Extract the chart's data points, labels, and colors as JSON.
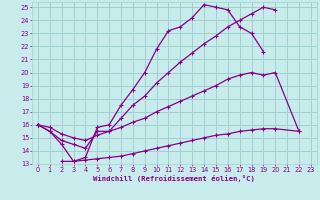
{
  "bg_color": "#c8ecec",
  "grid_color": "#a0d0d0",
  "line_color": "#880088",
  "xlabel": "Windchill (Refroidissement éolien,°C)",
  "xlim": [
    -0.5,
    23.5
  ],
  "ylim": [
    13,
    25.4
  ],
  "yticks": [
    13,
    14,
    15,
    16,
    17,
    18,
    19,
    20,
    21,
    22,
    23,
    24,
    25
  ],
  "xticks": [
    0,
    1,
    2,
    3,
    4,
    5,
    6,
    7,
    8,
    9,
    10,
    11,
    12,
    13,
    14,
    15,
    16,
    17,
    18,
    19,
    20,
    21,
    22,
    23
  ],
  "line1_x": [
    0,
    1,
    2,
    3,
    4,
    5,
    6,
    7,
    8,
    9,
    10,
    11,
    12,
    13,
    14,
    15,
    16,
    17,
    18,
    19
  ],
  "line1_y": [
    16.0,
    15.5,
    14.5,
    13.2,
    13.5,
    15.8,
    16.0,
    17.5,
    18.7,
    20.0,
    21.8,
    23.2,
    23.5,
    24.2,
    25.2,
    25.0,
    24.8,
    23.5,
    23.0,
    21.6
  ],
  "line2_x": [
    0,
    1,
    2,
    3,
    4,
    5,
    6,
    7,
    8,
    9,
    10,
    11,
    12,
    13,
    14,
    15,
    16,
    17,
    18,
    19,
    20
  ],
  "line2_y": [
    16.0,
    15.5,
    14.8,
    14.5,
    14.2,
    15.5,
    15.5,
    16.5,
    17.5,
    18.2,
    19.2,
    20.0,
    20.8,
    21.5,
    22.2,
    22.8,
    23.5,
    24.0,
    24.5,
    25.0,
    24.8
  ],
  "line3_x": [
    0,
    1,
    2,
    3,
    4,
    5,
    6,
    7,
    8,
    9,
    10,
    11,
    12,
    13,
    14,
    15,
    16,
    17,
    18,
    19,
    20,
    22
  ],
  "line3_y": [
    16.0,
    15.8,
    15.3,
    15.0,
    14.8,
    15.2,
    15.5,
    15.8,
    16.2,
    16.5,
    17.0,
    17.4,
    17.8,
    18.2,
    18.6,
    19.0,
    19.5,
    19.8,
    20.0,
    19.8,
    20.0,
    15.5
  ],
  "line4_x": [
    2,
    3,
    4,
    5,
    6,
    7,
    8,
    9,
    10,
    11,
    12,
    13,
    14,
    15,
    16,
    17,
    18,
    19,
    20,
    22
  ],
  "line4_y": [
    13.2,
    13.2,
    13.3,
    13.4,
    13.5,
    13.6,
    13.8,
    14.0,
    14.2,
    14.4,
    14.6,
    14.8,
    15.0,
    15.2,
    15.3,
    15.5,
    15.6,
    15.7,
    15.7,
    15.5
  ]
}
